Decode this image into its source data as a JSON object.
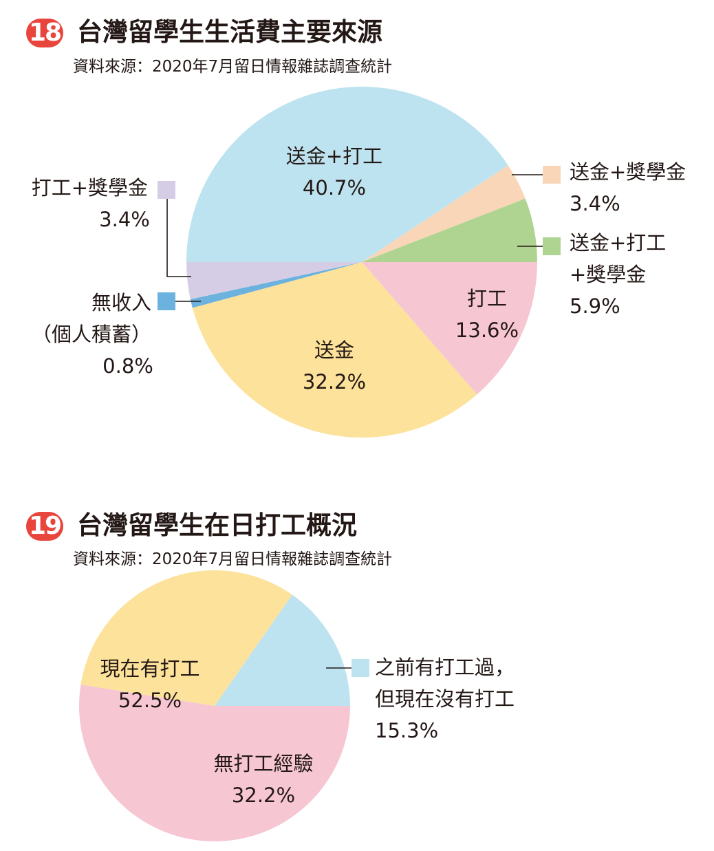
{
  "chart_data": [
    {
      "type": "pie",
      "number": "18",
      "title": "台灣留學生生活費主要來源",
      "source": "資料來源：2020年7月留日情報雜誌調查統計",
      "slices": [
        {
          "name": "送金+打工",
          "label_lines": [
            "送金+打工"
          ],
          "value": 40.7,
          "value_label": "40.7%",
          "color": "#bde3f0"
        },
        {
          "name": "送金+獎學金",
          "label_lines": [
            "送金+獎學金"
          ],
          "value": 3.4,
          "value_label": "3.4%",
          "color": "#f9d6b7"
        },
        {
          "name": "送金+打工+獎學金",
          "label_lines": [
            "送金+打工",
            "+獎學金"
          ],
          "value": 5.9,
          "value_label": "5.9%",
          "color": "#afd491"
        },
        {
          "name": "打工",
          "label_lines": [
            "打工"
          ],
          "value": 13.6,
          "value_label": "13.6%",
          "color": "#f6c7d2"
        },
        {
          "name": "送金",
          "label_lines": [
            "送金"
          ],
          "value": 32.2,
          "value_label": "32.2%",
          "color": "#fce29b"
        },
        {
          "name": "無收入（個人積蓄）",
          "label_lines": [
            "無收入",
            "（個人積蓄）"
          ],
          "value": 0.8,
          "value_label": "0.8%",
          "color": "#6cb2de"
        },
        {
          "name": "打工+獎學金",
          "label_lines": [
            "打工+獎學金"
          ],
          "value": 3.4,
          "value_label": "3.4%",
          "color": "#d5cde5"
        }
      ]
    },
    {
      "type": "pie",
      "number": "19",
      "title": "台灣留學生在日打工概況",
      "source": "資料來源：2020年7月留日情報雜誌調查統計",
      "slices": [
        {
          "name": "之前有打工過，但現在沒有打工",
          "label_lines": [
            "之前有打工過，",
            "但現在沒有打工"
          ],
          "value": 15.3,
          "value_label": "15.3%",
          "color": "#bde3f0"
        },
        {
          "name": "無打工經驗",
          "label_lines": [
            "無打工經驗"
          ],
          "value": 32.2,
          "value_label": "32.2%",
          "color": "#fce29b"
        },
        {
          "name": "現在有打工",
          "label_lines": [
            "現在有打工"
          ],
          "value": 52.5,
          "value_label": "52.5%",
          "color": "#f6c7d2"
        }
      ]
    }
  ]
}
